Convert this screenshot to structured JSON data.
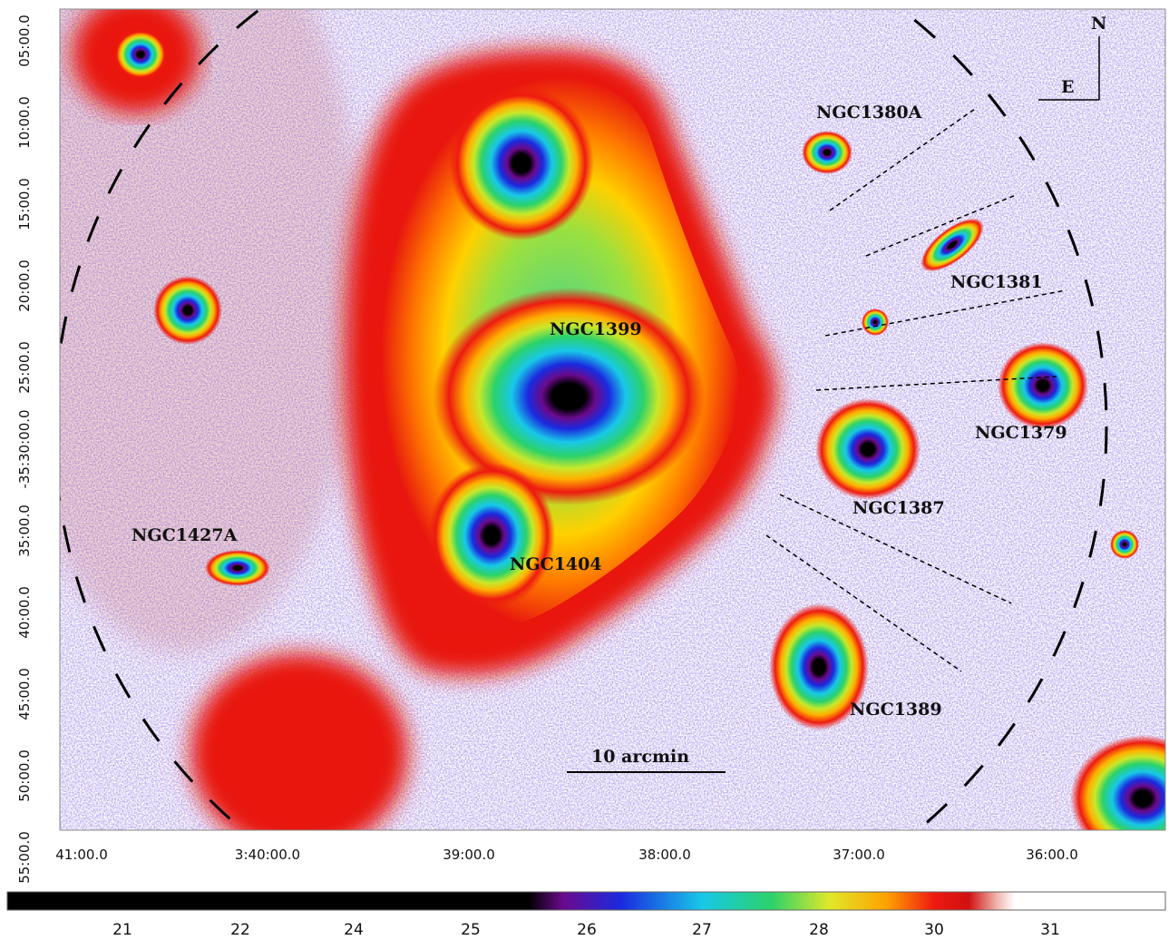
{
  "labels": [
    "NGC1380A",
    "NGC1381",
    "NGC1399",
    "NGC1379",
    "NGC1387",
    "NGC1404",
    "NGC1427A",
    "NGC1389"
  ],
  "scale_bar": "10 arcmin",
  "compass": {
    "north": "N",
    "east": "E"
  },
  "x_axis_labels": [
    "41:00.0",
    "3:40:00.0",
    "39:00.0",
    "38:00.0",
    "37:00.0",
    "36:00.0"
  ],
  "y_axis_labels": [
    "05:00.0",
    "10:00.0",
    "15:00.0",
    "20:00.0",
    "25:00.0",
    "-35:30:00.0",
    "35:00.0",
    "40:00.0",
    "45:00.0",
    "50:00.0",
    "55:00.0"
  ],
  "colorbar_labels": [
    21,
    22,
    24,
    25,
    26,
    27,
    28,
    30,
    31
  ]
}
